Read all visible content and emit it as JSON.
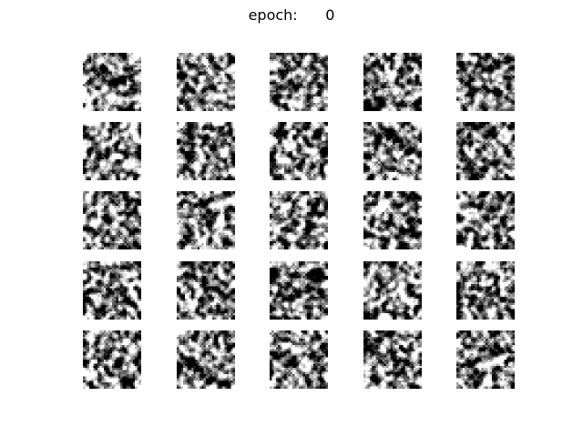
{
  "figure": {
    "title_label": "epoch:",
    "title_value": "0",
    "rows": 5,
    "cols": 5,
    "image_resolution": 28,
    "colormap": "gray"
  }
}
